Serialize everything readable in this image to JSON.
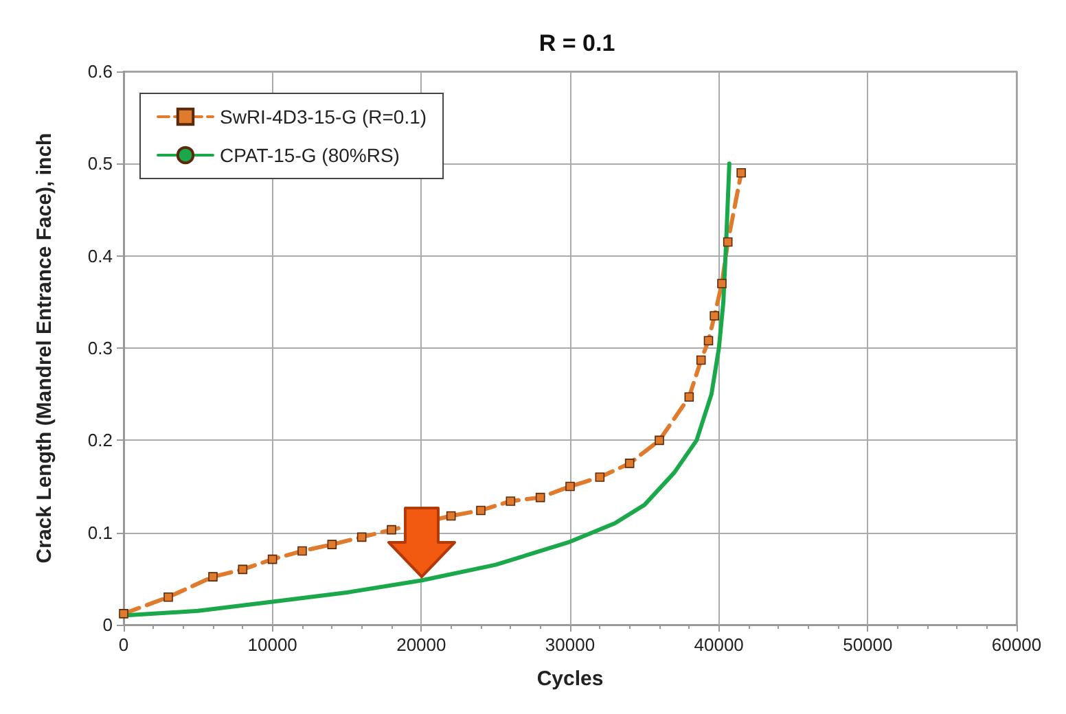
{
  "chart_data": {
    "type": "line",
    "title": "R = 0.1",
    "xlabel": "Cycles",
    "ylabel": "Crack Length (Mandrel Entrance Face), inch",
    "xlim": [
      0,
      60000
    ],
    "xticks": [
      0,
      10000,
      20000,
      30000,
      40000,
      50000,
      60000
    ],
    "ylim": [
      0,
      0.6
    ],
    "yticks": [
      0,
      0.1,
      0.2,
      0.3,
      0.4,
      0.5,
      0.6
    ],
    "grid": true,
    "legend": "top left",
    "series": [
      {
        "name": "SwRI-4D3-15-G (R=0.1)",
        "color": "#e07b2e",
        "line_style": "dashed",
        "marker": "square",
        "x": [
          0,
          3000,
          6000,
          8000,
          10000,
          12000,
          14000,
          16000,
          18000,
          22000,
          24000,
          26000,
          28000,
          30000,
          32000,
          34000,
          36000,
          38000,
          38800,
          39300,
          39700,
          40200,
          40600,
          41500
        ],
        "values": [
          0.012,
          0.03,
          0.052,
          0.06,
          0.071,
          0.08,
          0.087,
          0.095,
          0.103,
          0.118,
          0.124,
          0.134,
          0.138,
          0.15,
          0.16,
          0.175,
          0.2,
          0.247,
          0.287,
          0.308,
          0.335,
          0.37,
          0.415,
          0.49
        ]
      },
      {
        "name": "CPAT-15-G (80%RS)",
        "color": "#1aa84a",
        "line_style": "solid",
        "marker": "none",
        "x": [
          0,
          5000,
          10000,
          15000,
          20000,
          25000,
          30000,
          33000,
          35000,
          37000,
          38500,
          39500,
          40000,
          40300,
          40500,
          40700
        ],
        "values": [
          0.01,
          0.015,
          0.025,
          0.035,
          0.048,
          0.065,
          0.09,
          0.11,
          0.13,
          0.165,
          0.2,
          0.25,
          0.3,
          0.35,
          0.42,
          0.5
        ]
      }
    ]
  }
}
